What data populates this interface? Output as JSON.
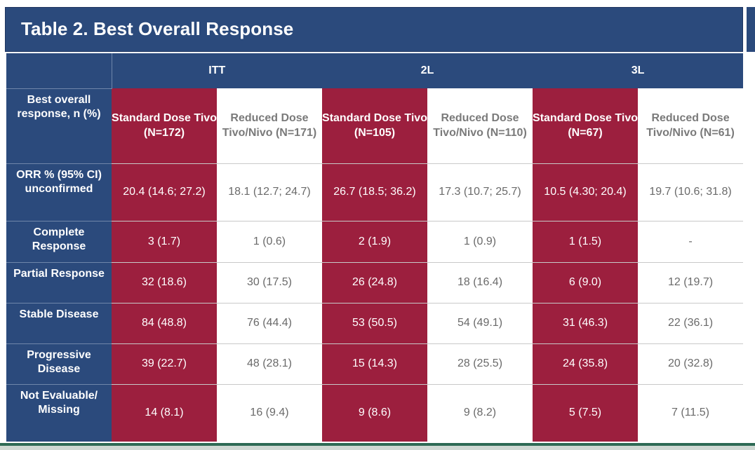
{
  "title": "Table 2. Best Overall Response",
  "groups": [
    "ITT",
    "2L",
    "3L"
  ],
  "header_label": "Best overall response, n (%)",
  "columns": [
    "Standard Dose Tivo (N=172)",
    "Reduced Dose Tivo/Nivo (N=171)",
    "Standard Dose Tivo (N=105)",
    "Reduced Dose Tivo/Nivo (N=110)",
    "Standard Dose Tivo (N=67)",
    "Reduced Dose Tivo/Nivo (N=61)"
  ],
  "rows": [
    {
      "label": "ORR % (95% CI) unconfirmed",
      "values": [
        "20.4 (14.6; 27.2)",
        "18.1 (12.7; 24.7)",
        "26.7 (18.5; 36.2)",
        "17.3 (10.7; 25.7)",
        "10.5 (4.30; 20.4)",
        "19.7 (10.6; 31.8)"
      ]
    },
    {
      "label": "Complete Response",
      "values": [
        "3 (1.7)",
        "1 (0.6)",
        "2 (1.9)",
        "1 (0.9)",
        "1 (1.5)",
        "-"
      ]
    },
    {
      "label": "Partial Response",
      "values": [
        "32 (18.6)",
        "30 (17.5)",
        "26 (24.8)",
        "18 (16.4)",
        "6 (9.0)",
        "12 (19.7)"
      ]
    },
    {
      "label": "Stable Disease",
      "values": [
        "84 (48.8)",
        "76 (44.4)",
        "53 (50.5)",
        "54 (49.1)",
        "31 (46.3)",
        "22 (36.1)"
      ]
    },
    {
      "label": "Progressive Disease",
      "values": [
        "39 (22.7)",
        "48 (28.1)",
        "15 (14.3)",
        "28 (25.5)",
        "24 (35.8)",
        "20 (32.8)"
      ]
    },
    {
      "label": "Not Evaluable/ Missing",
      "values": [
        "14 (8.1)",
        "16 (9.4)",
        "9 (8.6)",
        "9 (8.2)",
        "5 (7.5)",
        "7 (11.5)"
      ]
    }
  ],
  "colors": {
    "navy": "#2b4a7c",
    "red": "#9c1f3e",
    "white": "#ffffff",
    "text_grey": "#6a6a6a"
  }
}
